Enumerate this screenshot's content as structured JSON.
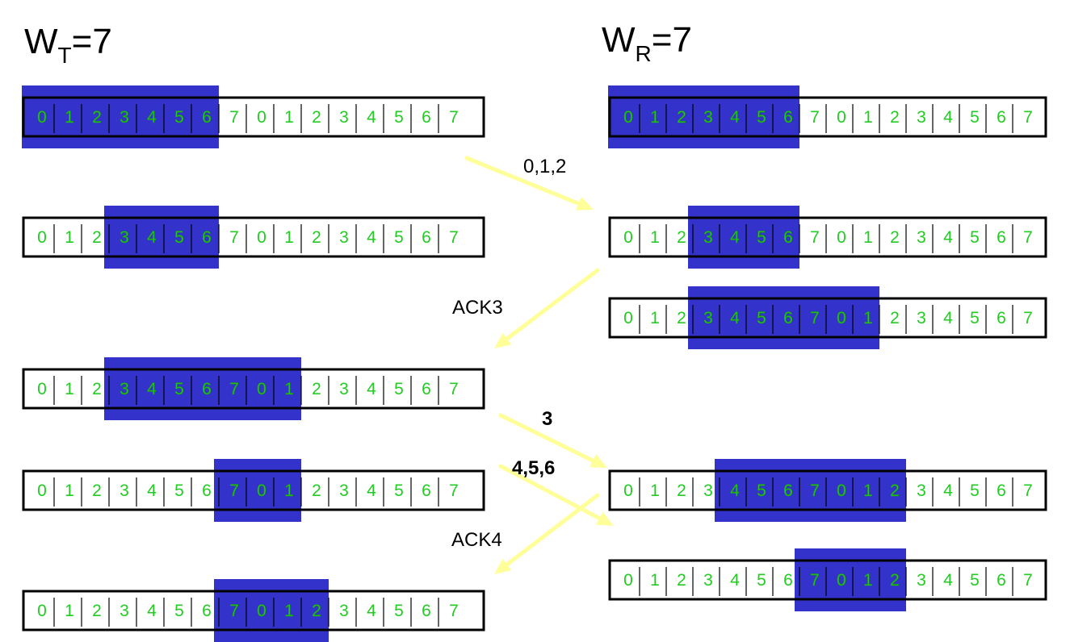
{
  "titles": {
    "sender": {
      "main": "W",
      "sub": "T",
      "rest": "=7"
    },
    "receiver": {
      "main": "W",
      "sub": "R",
      "rest": "=7"
    }
  },
  "sequence": [
    "0",
    "1",
    "2",
    "3",
    "4",
    "5",
    "6",
    "7",
    "0",
    "1",
    "2",
    "3",
    "4",
    "5",
    "6",
    "7"
  ],
  "colors": {
    "window": "#3333cc",
    "number": "#22cc22",
    "arrow": "#ffff99",
    "border": "#000000"
  },
  "sender_rows": [
    {
      "window": [
        0,
        6
      ]
    },
    {
      "window": [
        3,
        6
      ]
    },
    {
      "window": [
        3,
        9
      ]
    },
    {
      "window": [
        7,
        9
      ]
    },
    {
      "window": [
        7,
        10
      ]
    }
  ],
  "receiver_rows": [
    {
      "window": [
        0,
        6
      ]
    },
    {
      "window": [
        3,
        6
      ]
    },
    {
      "window": [
        3,
        9
      ]
    },
    {
      "window": [
        4,
        10
      ]
    },
    {
      "window": [
        7,
        10
      ]
    }
  ],
  "messages": [
    {
      "label": "0,1,2",
      "bold": false
    },
    {
      "label": "ACK3",
      "bold": false
    },
    {
      "label": "3",
      "bold": true
    },
    {
      "label": "4,5,6",
      "bold": true
    },
    {
      "label": "ACK4",
      "bold": false
    }
  ]
}
